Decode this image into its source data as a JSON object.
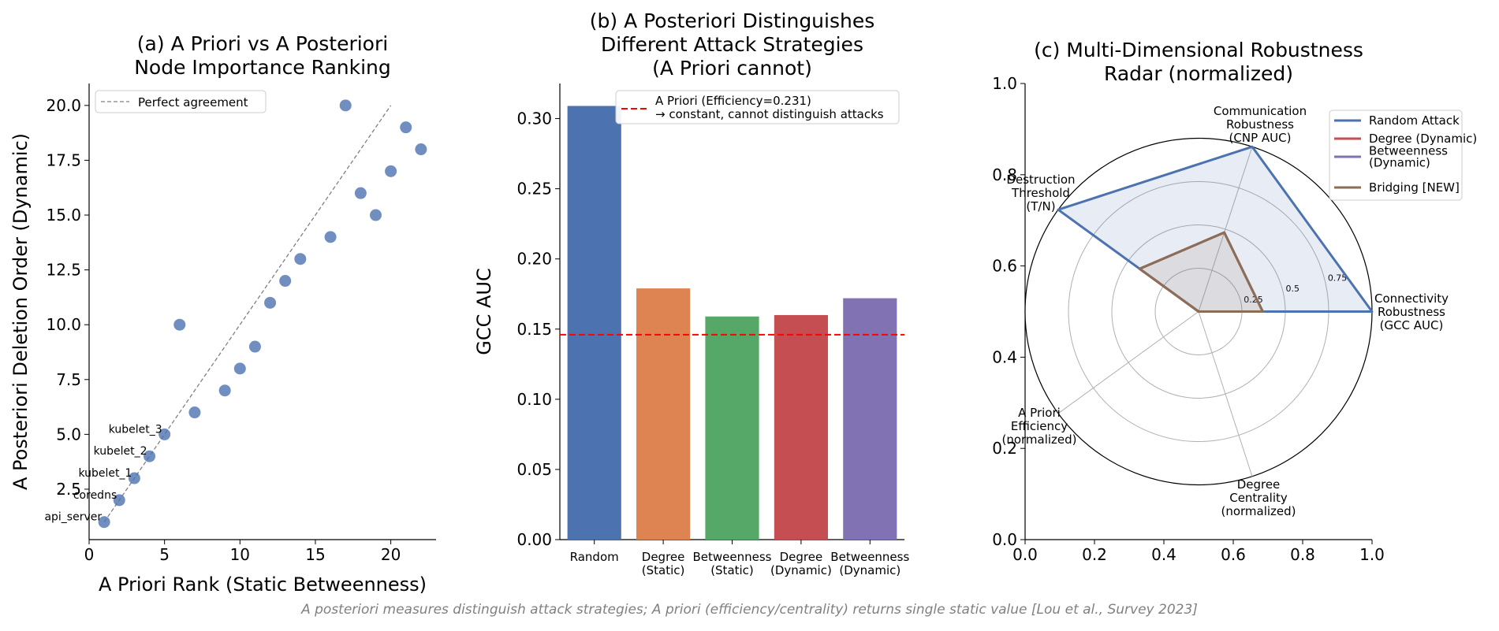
{
  "chart_data": [
    {
      "type": "scatter",
      "title": [
        "(a) A Priori vs A Posteriori",
        "Node Importance Ranking"
      ],
      "xlabel": "A Priori Rank (Static Betweenness)",
      "ylabel": "A Posteriori Deletion Order (Dynamic)",
      "xlim": [
        0,
        23
      ],
      "ylim": [
        0.2,
        21
      ],
      "xticks": [
        0,
        5,
        10,
        15,
        20
      ],
      "xtick_labels": [
        "0",
        "5",
        "10",
        "15",
        "20"
      ],
      "yticks": [
        2.5,
        5,
        7.5,
        10,
        12.5,
        15,
        17.5,
        20
      ],
      "ytick_labels": [
        "2.5",
        "5.0",
        "7.5",
        "10.0",
        "12.5",
        "15.0",
        "17.5",
        "20.0"
      ],
      "grid": false,
      "legend": {
        "position": "top-left",
        "entries": [
          "Perfect agreement"
        ]
      },
      "reference_line": {
        "name": "Perfect agreement",
        "x": [
          1,
          20
        ],
        "y": [
          1,
          20
        ],
        "color": "#808080",
        "style": "dashed"
      },
      "point_color": "#4c72b0",
      "points": [
        {
          "x": 1,
          "y": 1,
          "label": "api_server"
        },
        {
          "x": 2,
          "y": 2,
          "label": "coredns"
        },
        {
          "x": 3,
          "y": 3,
          "label": "kubelet_1"
        },
        {
          "x": 4,
          "y": 4,
          "label": "kubelet_2"
        },
        {
          "x": 5,
          "y": 5,
          "label": "kubelet_3"
        },
        {
          "x": 6,
          "y": 10,
          "label": ""
        },
        {
          "x": 7,
          "y": 6,
          "label": ""
        },
        {
          "x": 9,
          "y": 7,
          "label": ""
        },
        {
          "x": 10,
          "y": 8,
          "label": ""
        },
        {
          "x": 11,
          "y": 9,
          "label": ""
        },
        {
          "x": 12,
          "y": 11,
          "label": ""
        },
        {
          "x": 13,
          "y": 12,
          "label": ""
        },
        {
          "x": 14,
          "y": 13,
          "label": ""
        },
        {
          "x": 16,
          "y": 14,
          "label": ""
        },
        {
          "x": 17,
          "y": 20,
          "label": ""
        },
        {
          "x": 18,
          "y": 16,
          "label": ""
        },
        {
          "x": 19,
          "y": 15,
          "label": ""
        },
        {
          "x": 20,
          "y": 17,
          "label": ""
        },
        {
          "x": 21,
          "y": 19,
          "label": ""
        },
        {
          "x": 22,
          "y": 18,
          "label": ""
        }
      ]
    },
    {
      "type": "bar",
      "title": [
        "(b) A Posteriori Distinguishes",
        "Different Attack Strategies",
        "(A Priori cannot)"
      ],
      "xlabel": "",
      "ylabel": "GCC AUC",
      "ylim": [
        0,
        0.325
      ],
      "yticks": [
        0,
        0.05,
        0.1,
        0.15,
        0.2,
        0.25,
        0.3
      ],
      "ytick_labels": [
        "0.00",
        "0.05",
        "0.10",
        "0.15",
        "0.20",
        "0.25",
        "0.30"
      ],
      "grid": false,
      "categories": [
        [
          "Random"
        ],
        [
          "Degree",
          "(Static)"
        ],
        [
          "Betweenness",
          "(Static)"
        ],
        [
          "Degree",
          "(Dynamic)"
        ],
        [
          "Betweenness",
          "(Dynamic)"
        ]
      ],
      "values": [
        0.309,
        0.179,
        0.159,
        0.16,
        0.172
      ],
      "colors": [
        "#4c72b0",
        "#dd8452",
        "#55a868",
        "#c44e52",
        "#8172b3"
      ],
      "reference_line": {
        "value": 0.146,
        "color": "#ff0000",
        "style": "dashed"
      },
      "legend": {
        "position": "top-right",
        "entries": [
          [
            "A Priori (Efficiency=0.231)",
            "→ constant, cannot distinguish attacks"
          ]
        ]
      }
    },
    {
      "type": "radar",
      "title": [
        "(c) Multi-Dimensional Robustness",
        "Radar (normalized)"
      ],
      "frame_xlim": [
        0,
        1
      ],
      "frame_ylim": [
        0,
        1
      ],
      "frame_xticks": [
        0,
        0.2,
        0.4,
        0.6,
        0.8,
        1
      ],
      "frame_xtick_labels": [
        "0.0",
        "0.2",
        "0.4",
        "0.6",
        "0.8",
        "1.0"
      ],
      "frame_yticks": [
        0,
        0.2,
        0.4,
        0.6,
        0.8,
        1
      ],
      "frame_ytick_labels": [
        "0.0",
        "0.2",
        "0.4",
        "0.6",
        "0.8",
        "1.0"
      ],
      "radial_ticks": [
        0.25,
        0.5,
        0.75
      ],
      "radial_tick_labels": [
        "0.25",
        "0.5",
        "0.75"
      ],
      "radial_max": 1.0,
      "axes": [
        [
          "Connectivity",
          "Robustness",
          "(GCC AUC)"
        ],
        [
          "Communication",
          "Robustness",
          "(CNP AUC)"
        ],
        [
          "Destruction",
          "Threshold",
          "(T/N)"
        ],
        [
          "A Priori",
          "Efficiency",
          "(normalized)"
        ],
        [
          "Degree",
          "Centrality",
          "(normalized)"
        ]
      ],
      "series": [
        {
          "name": "Random Attack",
          "color": "#4c72b0",
          "values": [
            1.0,
            1.0,
            1.0,
            0.0,
            0.0
          ],
          "fill": true
        },
        {
          "name": "Degree (Dynamic)",
          "color": "#c44e52",
          "values": [
            0.37,
            0.48,
            0.42,
            0.0,
            0.0
          ],
          "fill": false
        },
        {
          "name": "Betweenness\n(Dynamic)",
          "color": "#8172b3",
          "values": [
            0.37,
            0.48,
            0.42,
            0.0,
            0.0
          ],
          "fill": false
        },
        {
          "name": "Bridging [NEW]",
          "color": "#8c6d55",
          "values": [
            0.37,
            0.48,
            0.42,
            0.0,
            0.0
          ],
          "fill": true
        }
      ],
      "legend": {
        "position": "right"
      }
    }
  ],
  "footnote": "A posteriori measures distinguish attack strategies; A priori (efficiency/centrality) returns single static value [Lou et al., Survey 2023]"
}
